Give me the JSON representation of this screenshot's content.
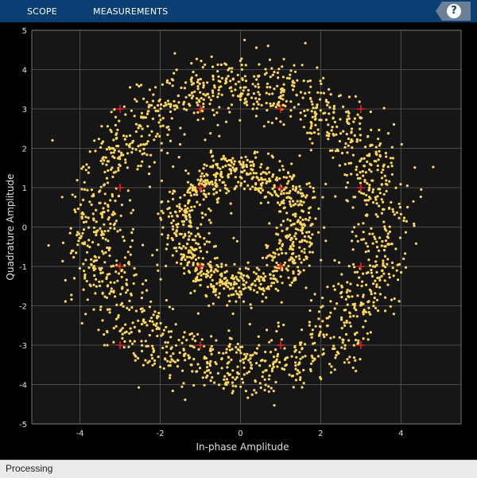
{
  "toolstrip": {
    "tabs": [
      {
        "label": "SCOPE"
      },
      {
        "label": "MEASUREMENTS"
      }
    ],
    "help_label": "?"
  },
  "status": {
    "text": "Processing"
  },
  "colors": {
    "toolstrip_bg": "#0b3f73",
    "plot_bg": "#161616",
    "figure_bg": "#000000",
    "grid": "#5a5a5a",
    "axis_text": "#e0e0e0",
    "point": "#ffd75f",
    "reference": "#e0242a"
  },
  "chart_data": {
    "type": "scatter",
    "title": "",
    "xlabel": "In-phase Amplitude",
    "ylabel": "Quadrature Amplitude",
    "xlim": [
      -5.2,
      5.5
    ],
    "ylim": [
      -5,
      5
    ],
    "xticks": [
      -4,
      -2,
      0,
      2,
      4
    ],
    "yticks": [
      -5,
      -4,
      -3,
      -2,
      -1,
      0,
      1,
      2,
      3,
      4,
      5
    ],
    "grid": true,
    "series": [
      {
        "kind": "received-symbols",
        "marker": "dot",
        "color": "#ffd75f",
        "rings": [
          {
            "radius": 1.5,
            "spread": 0.28,
            "count": 900
          },
          {
            "radius": 3.6,
            "spread": 0.42,
            "count": 1700
          }
        ]
      },
      {
        "kind": "reference-constellation",
        "marker": "plus",
        "color": "#e0242a",
        "points": [
          [
            -3,
            3
          ],
          [
            -1,
            3
          ],
          [
            1,
            3
          ],
          [
            3,
            3
          ],
          [
            -3,
            1
          ],
          [
            -1,
            1
          ],
          [
            1,
            1
          ],
          [
            3,
            1
          ],
          [
            -3,
            -1
          ],
          [
            -1,
            -1
          ],
          [
            1,
            -1
          ],
          [
            3,
            -1
          ],
          [
            -3,
            -3
          ],
          [
            -1,
            -3
          ],
          [
            1,
            -3
          ],
          [
            3,
            -3
          ]
        ]
      }
    ]
  }
}
